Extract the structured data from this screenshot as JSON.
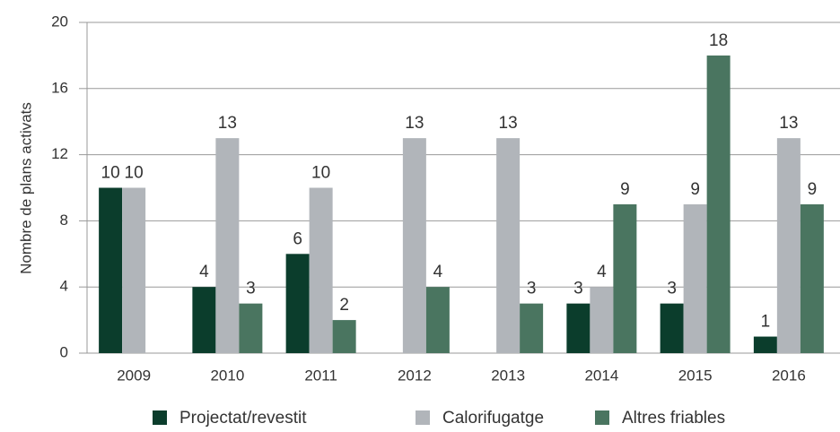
{
  "chart_data": {
    "type": "bar",
    "y_label": "Nombre de plans activats",
    "categories": [
      "2009",
      "2010",
      "2011",
      "2012",
      "2013",
      "2014",
      "2015",
      "2016"
    ],
    "series": [
      {
        "name": "Projectat/revestit",
        "color": "#0b3d2c",
        "values": [
          10,
          4,
          6,
          null,
          null,
          3,
          3,
          1
        ]
      },
      {
        "name": "Calorifugatge",
        "color": "#b1b5ba",
        "values": [
          10,
          13,
          10,
          13,
          13,
          4,
          9,
          13
        ]
      },
      {
        "name": "Altres friables",
        "color": "#4a7560",
        "values": [
          null,
          3,
          2,
          4,
          3,
          9,
          18,
          9
        ]
      }
    ],
    "ylim": [
      0,
      20
    ],
    "yticks": [
      0,
      4,
      8,
      12,
      16,
      20
    ],
    "grid": true
  }
}
